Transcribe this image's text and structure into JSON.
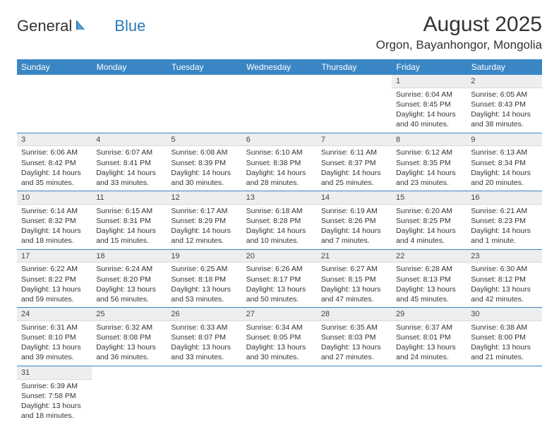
{
  "logo": {
    "text1": "General",
    "text2": "Blue"
  },
  "title": "August 2025",
  "location": "Orgon, Bayanhongor, Mongolia",
  "colors": {
    "header_bg": "#3a86c4",
    "header_text": "#ffffff",
    "daynum_bg": "#eceeef",
    "row_border": "#3a86c4",
    "logo_blue": "#2a7ab8"
  },
  "day_names": [
    "Sunday",
    "Monday",
    "Tuesday",
    "Wednesday",
    "Thursday",
    "Friday",
    "Saturday"
  ],
  "weeks": [
    [
      {
        "num": "",
        "sunrise": "",
        "sunset": "",
        "day": ""
      },
      {
        "num": "",
        "sunrise": "",
        "sunset": "",
        "day": ""
      },
      {
        "num": "",
        "sunrise": "",
        "sunset": "",
        "day": ""
      },
      {
        "num": "",
        "sunrise": "",
        "sunset": "",
        "day": ""
      },
      {
        "num": "",
        "sunrise": "",
        "sunset": "",
        "day": ""
      },
      {
        "num": "1",
        "sunrise": "Sunrise: 6:04 AM",
        "sunset": "Sunset: 8:45 PM",
        "day": "Daylight: 14 hours and 40 minutes."
      },
      {
        "num": "2",
        "sunrise": "Sunrise: 6:05 AM",
        "sunset": "Sunset: 8:43 PM",
        "day": "Daylight: 14 hours and 38 minutes."
      }
    ],
    [
      {
        "num": "3",
        "sunrise": "Sunrise: 6:06 AM",
        "sunset": "Sunset: 8:42 PM",
        "day": "Daylight: 14 hours and 35 minutes."
      },
      {
        "num": "4",
        "sunrise": "Sunrise: 6:07 AM",
        "sunset": "Sunset: 8:41 PM",
        "day": "Daylight: 14 hours and 33 minutes."
      },
      {
        "num": "5",
        "sunrise": "Sunrise: 6:08 AM",
        "sunset": "Sunset: 8:39 PM",
        "day": "Daylight: 14 hours and 30 minutes."
      },
      {
        "num": "6",
        "sunrise": "Sunrise: 6:10 AM",
        "sunset": "Sunset: 8:38 PM",
        "day": "Daylight: 14 hours and 28 minutes."
      },
      {
        "num": "7",
        "sunrise": "Sunrise: 6:11 AM",
        "sunset": "Sunset: 8:37 PM",
        "day": "Daylight: 14 hours and 25 minutes."
      },
      {
        "num": "8",
        "sunrise": "Sunrise: 6:12 AM",
        "sunset": "Sunset: 8:35 PM",
        "day": "Daylight: 14 hours and 23 minutes."
      },
      {
        "num": "9",
        "sunrise": "Sunrise: 6:13 AM",
        "sunset": "Sunset: 8:34 PM",
        "day": "Daylight: 14 hours and 20 minutes."
      }
    ],
    [
      {
        "num": "10",
        "sunrise": "Sunrise: 6:14 AM",
        "sunset": "Sunset: 8:32 PM",
        "day": "Daylight: 14 hours and 18 minutes."
      },
      {
        "num": "11",
        "sunrise": "Sunrise: 6:15 AM",
        "sunset": "Sunset: 8:31 PM",
        "day": "Daylight: 14 hours and 15 minutes."
      },
      {
        "num": "12",
        "sunrise": "Sunrise: 6:17 AM",
        "sunset": "Sunset: 8:29 PM",
        "day": "Daylight: 14 hours and 12 minutes."
      },
      {
        "num": "13",
        "sunrise": "Sunrise: 6:18 AM",
        "sunset": "Sunset: 8:28 PM",
        "day": "Daylight: 14 hours and 10 minutes."
      },
      {
        "num": "14",
        "sunrise": "Sunrise: 6:19 AM",
        "sunset": "Sunset: 8:26 PM",
        "day": "Daylight: 14 hours and 7 minutes."
      },
      {
        "num": "15",
        "sunrise": "Sunrise: 6:20 AM",
        "sunset": "Sunset: 8:25 PM",
        "day": "Daylight: 14 hours and 4 minutes."
      },
      {
        "num": "16",
        "sunrise": "Sunrise: 6:21 AM",
        "sunset": "Sunset: 8:23 PM",
        "day": "Daylight: 14 hours and 1 minute."
      }
    ],
    [
      {
        "num": "17",
        "sunrise": "Sunrise: 6:22 AM",
        "sunset": "Sunset: 8:22 PM",
        "day": "Daylight: 13 hours and 59 minutes."
      },
      {
        "num": "18",
        "sunrise": "Sunrise: 6:24 AM",
        "sunset": "Sunset: 8:20 PM",
        "day": "Daylight: 13 hours and 56 minutes."
      },
      {
        "num": "19",
        "sunrise": "Sunrise: 6:25 AM",
        "sunset": "Sunset: 8:18 PM",
        "day": "Daylight: 13 hours and 53 minutes."
      },
      {
        "num": "20",
        "sunrise": "Sunrise: 6:26 AM",
        "sunset": "Sunset: 8:17 PM",
        "day": "Daylight: 13 hours and 50 minutes."
      },
      {
        "num": "21",
        "sunrise": "Sunrise: 6:27 AM",
        "sunset": "Sunset: 8:15 PM",
        "day": "Daylight: 13 hours and 47 minutes."
      },
      {
        "num": "22",
        "sunrise": "Sunrise: 6:28 AM",
        "sunset": "Sunset: 8:13 PM",
        "day": "Daylight: 13 hours and 45 minutes."
      },
      {
        "num": "23",
        "sunrise": "Sunrise: 6:30 AM",
        "sunset": "Sunset: 8:12 PM",
        "day": "Daylight: 13 hours and 42 minutes."
      }
    ],
    [
      {
        "num": "24",
        "sunrise": "Sunrise: 6:31 AM",
        "sunset": "Sunset: 8:10 PM",
        "day": "Daylight: 13 hours and 39 minutes."
      },
      {
        "num": "25",
        "sunrise": "Sunrise: 6:32 AM",
        "sunset": "Sunset: 8:08 PM",
        "day": "Daylight: 13 hours and 36 minutes."
      },
      {
        "num": "26",
        "sunrise": "Sunrise: 6:33 AM",
        "sunset": "Sunset: 8:07 PM",
        "day": "Daylight: 13 hours and 33 minutes."
      },
      {
        "num": "27",
        "sunrise": "Sunrise: 6:34 AM",
        "sunset": "Sunset: 8:05 PM",
        "day": "Daylight: 13 hours and 30 minutes."
      },
      {
        "num": "28",
        "sunrise": "Sunrise: 6:35 AM",
        "sunset": "Sunset: 8:03 PM",
        "day": "Daylight: 13 hours and 27 minutes."
      },
      {
        "num": "29",
        "sunrise": "Sunrise: 6:37 AM",
        "sunset": "Sunset: 8:01 PM",
        "day": "Daylight: 13 hours and 24 minutes."
      },
      {
        "num": "30",
        "sunrise": "Sunrise: 6:38 AM",
        "sunset": "Sunset: 8:00 PM",
        "day": "Daylight: 13 hours and 21 minutes."
      }
    ],
    [
      {
        "num": "31",
        "sunrise": "Sunrise: 6:39 AM",
        "sunset": "Sunset: 7:58 PM",
        "day": "Daylight: 13 hours and 18 minutes."
      },
      {
        "num": "",
        "sunrise": "",
        "sunset": "",
        "day": ""
      },
      {
        "num": "",
        "sunrise": "",
        "sunset": "",
        "day": ""
      },
      {
        "num": "",
        "sunrise": "",
        "sunset": "",
        "day": ""
      },
      {
        "num": "",
        "sunrise": "",
        "sunset": "",
        "day": ""
      },
      {
        "num": "",
        "sunrise": "",
        "sunset": "",
        "day": ""
      },
      {
        "num": "",
        "sunrise": "",
        "sunset": "",
        "day": ""
      }
    ]
  ]
}
